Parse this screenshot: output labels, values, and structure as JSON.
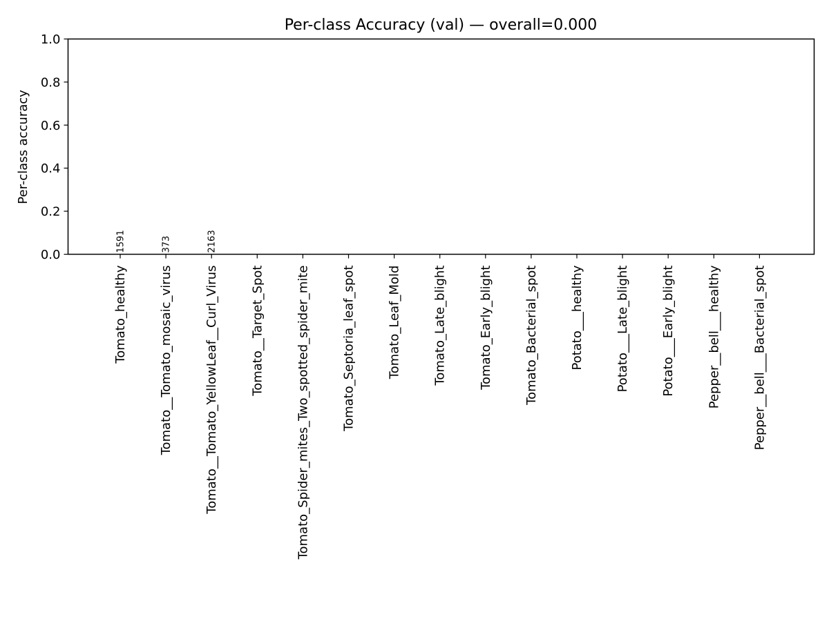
{
  "chart_data": {
    "type": "bar",
    "title": "Per-class Accuracy (val) — overall=0.000",
    "ylabel": "Per-class accuracy",
    "xlabel": "",
    "ylim": [
      0,
      1.0
    ],
    "yticks": [
      "0.0",
      "0.2",
      "0.4",
      "0.6",
      "0.8",
      "1.0"
    ],
    "categories": [
      "Tomato_healthy",
      "Tomato__Tomato_mosaic_virus",
      "Tomato__Tomato_YellowLeaf__Curl_Virus",
      "Tomato__Target_Spot",
      "Tomato_Spider_mites_Two_spotted_spider_mite",
      "Tomato_Septoria_leaf_spot",
      "Tomato_Leaf_Mold",
      "Tomato_Late_blight",
      "Tomato_Early_blight",
      "Tomato_Bacterial_spot",
      "Potato___healthy",
      "Potato___Late_blight",
      "Potato___Early_blight",
      "Pepper__bell___healthy",
      "Pepper__bell___Bacterial_spot"
    ],
    "values": [
      0,
      0,
      0,
      0,
      0,
      0,
      0,
      0,
      0,
      0,
      0,
      0,
      0,
      0,
      0
    ],
    "count_labels": [
      "1591",
      "373",
      "2163",
      "",
      "",
      "",
      "",
      "",
      "",
      "",
      "",
      "",
      "",
      "",
      ""
    ],
    "grid": false,
    "colors": {
      "bar": "#1f77b4",
      "axis": "#000000"
    }
  }
}
